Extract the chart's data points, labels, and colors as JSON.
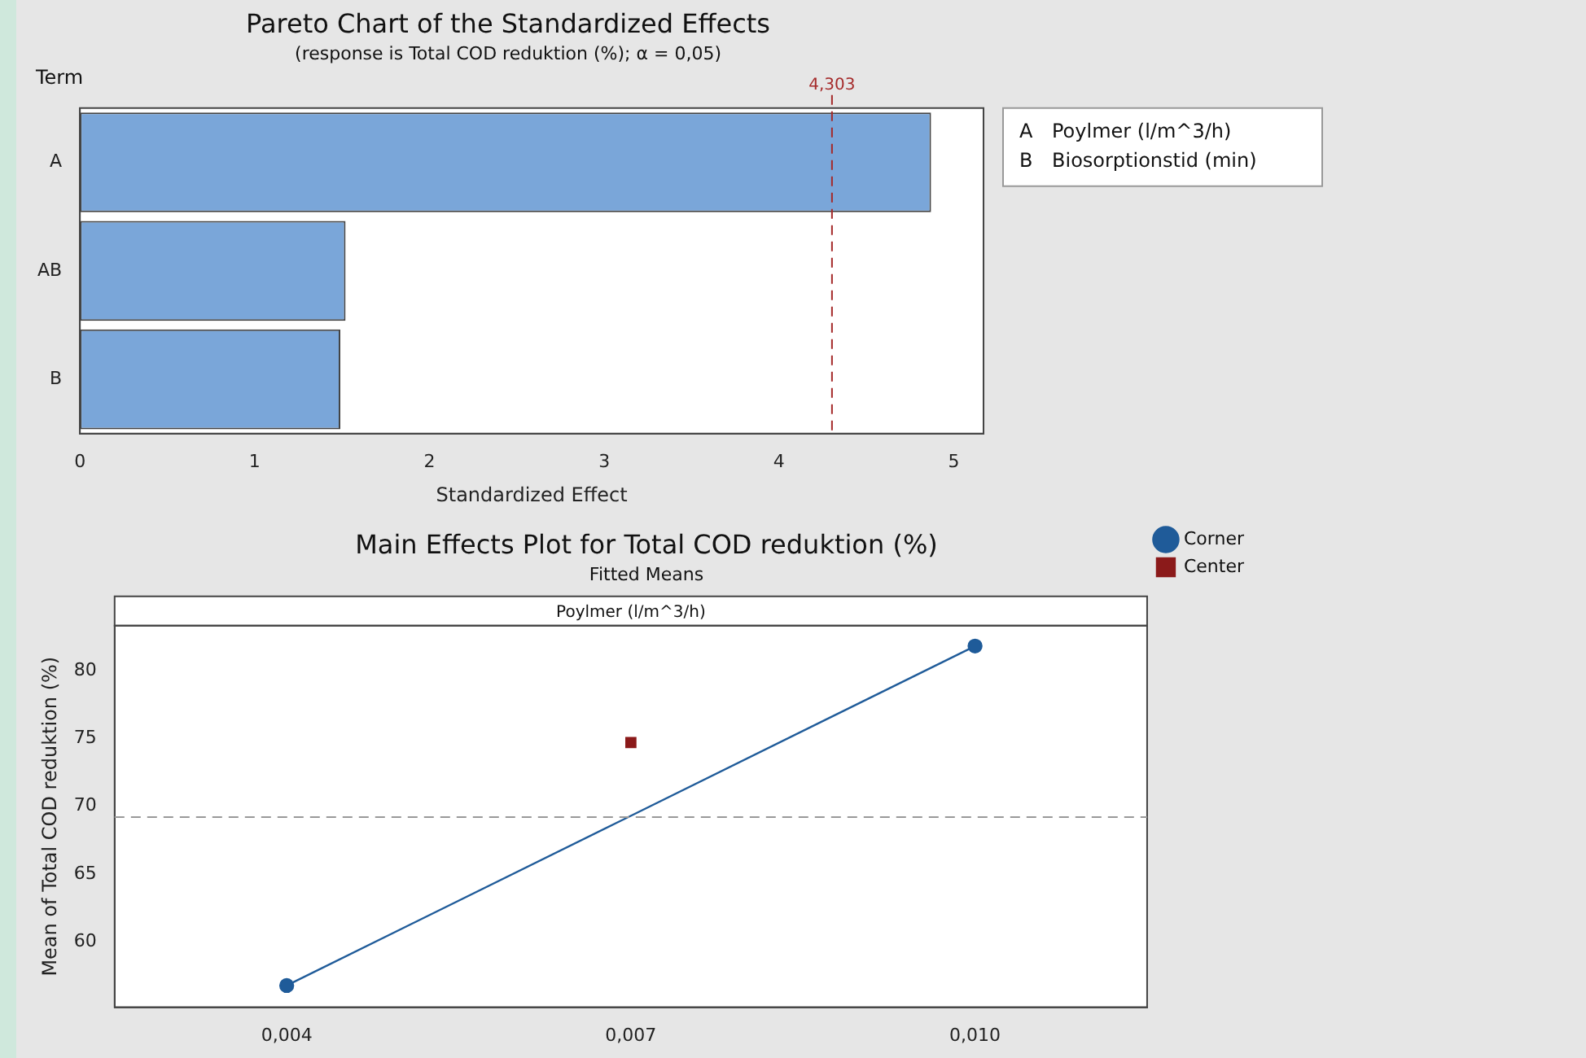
{
  "chart_data": [
    {
      "type": "bar",
      "orientation": "horizontal",
      "title": "Pareto Chart of the Standardized Effects",
      "subtitle": "(response is Total COD reduktion (%); α = 0,05)",
      "ylabel": "Term",
      "xlabel": "Standardized Effect",
      "categories": [
        "A",
        "AB",
        "B"
      ],
      "values": [
        4.87,
        1.52,
        1.49
      ],
      "color": "#7aa6d9",
      "xlim": [
        0,
        5.17
      ],
      "xticks": [
        0,
        1,
        2,
        3,
        4,
        5
      ],
      "grid": false,
      "legend": false,
      "ref_lines": [
        {
          "axis": "x",
          "value": 4.303,
          "label": "4,303",
          "color": "#a52a2a",
          "line_style": "dashed"
        }
      ],
      "annotations": [
        "A    Poylmer (l/m^3/h)",
        "B    Biosorptionstid (min)"
      ]
    },
    {
      "type": "line",
      "title": "Main Effects Plot for Total COD reduktion (%)",
      "subtitle": "Fitted Means",
      "ylabel": "Mean of Total COD reduktion (%)",
      "annotations": [
        "Poylmer (l/m^3/h)"
      ],
      "legend": "top right",
      "grid": false,
      "xlim": [
        0.0025,
        0.0115
      ],
      "xticks": [
        {
          "value": 0.004,
          "label": "0,004"
        },
        {
          "value": 0.007,
          "label": "0,007"
        },
        {
          "value": 0.01,
          "label": "0,010"
        }
      ],
      "ylim": [
        55.2,
        83.3
      ],
      "yticks": [
        60,
        65,
        70,
        75,
        80
      ],
      "series": [
        {
          "name": "Corner",
          "type": "line",
          "color": "#1f5b99",
          "marker": "circle",
          "x": [
            0.004,
            0.01
          ],
          "values": [
            56.8,
            81.8
          ]
        },
        {
          "name": "Center",
          "type": "scatter",
          "color": "#8b1a1a",
          "marker": "square",
          "x": [
            0.007
          ],
          "values": [
            74.7
          ]
        }
      ],
      "ref_lines": [
        {
          "axis": "y",
          "value": 69.2,
          "color": "#999999",
          "line_style": "dashed"
        }
      ]
    }
  ]
}
